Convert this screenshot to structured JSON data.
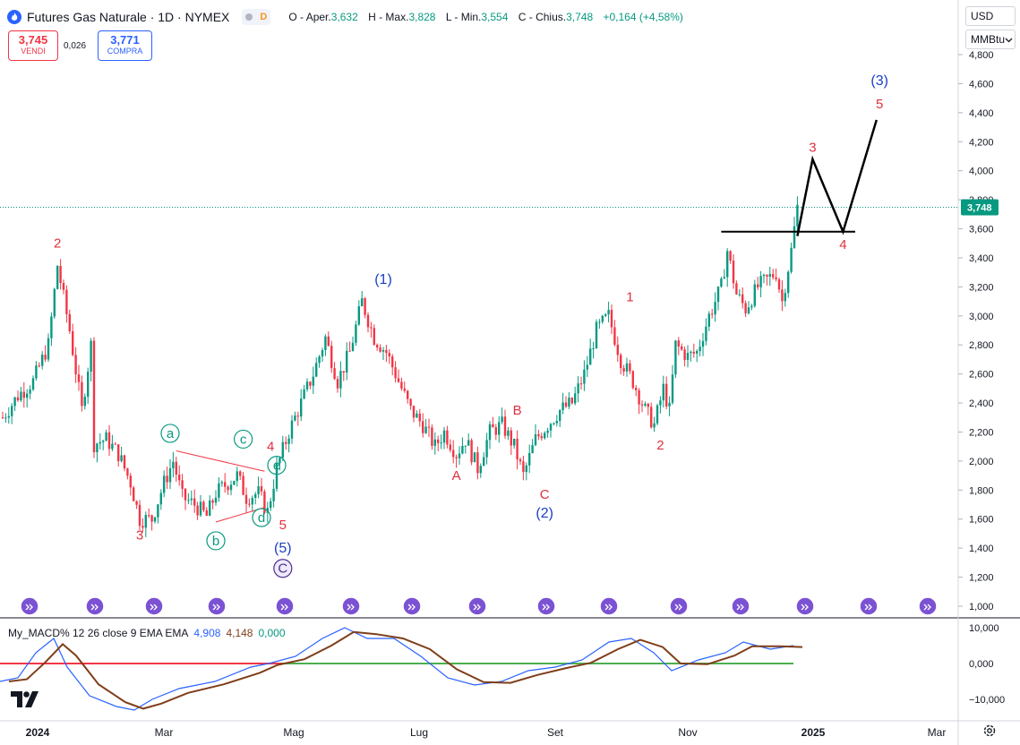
{
  "header": {
    "title": "Futures Gas Naturale · 1D · NYMEX",
    "badge": "D",
    "ohlc": [
      {
        "key": "O - Aper.",
        "value": "3,632"
      },
      {
        "key": "H - Max.",
        "value": "3,828"
      },
      {
        "key": "L - Min.",
        "value": "3,554"
      },
      {
        "key": "C - Chius.",
        "value": "3,748"
      }
    ],
    "change": "+0,164 (+4,58%)"
  },
  "trade": {
    "sell_price": "3,745",
    "sell_label": "VENDI",
    "spread": "0,026",
    "buy_price": "3,771",
    "buy_label": "COMPRA"
  },
  "controls": {
    "currency": "USD",
    "unit": "MMBtu"
  },
  "macd_legend": {
    "name": "My_MACD% 12 26 close 9 EMA EMA",
    "v1": "4,908",
    "v2": "4,148",
    "v3": "0,000"
  },
  "colors": {
    "up": "#089981",
    "down": "#f23645",
    "accent": "#2962ff",
    "macd": "#2962ff",
    "signal": "#7f3e1a",
    "wave_red": "#e0303e",
    "wave_blue": "#1a3fc4",
    "wave_green": "#089981"
  },
  "chart_data": {
    "type": "candlestick",
    "title": "Futures Gas Naturale · 1D · NYMEX",
    "y_ticks": [
      "4,800",
      "4,600",
      "4,400",
      "4,200",
      "4,000",
      "3,800",
      "3,600",
      "3,400",
      "3,200",
      "3,000",
      "2,800",
      "2,600",
      "2,400",
      "2,200",
      "2,000",
      "1,800",
      "1,600",
      "1,400",
      "1,200",
      "1,000"
    ],
    "ylim": [
      1.0,
      4.8
    ],
    "x_ticks": [
      "2024",
      "Mar",
      "Mag",
      "Lug",
      "Set",
      "Nov",
      "2025",
      "Mar"
    ],
    "last_price": "3,748",
    "macd_ticks": [
      "10,000",
      "0,000",
      "−10,000"
    ],
    "price_path": [
      [
        0,
        2.3
      ],
      [
        5,
        2.45
      ],
      [
        10,
        2.55
      ],
      [
        15,
        2.8
      ],
      [
        18,
        3.35
      ],
      [
        22,
        2.9
      ],
      [
        26,
        2.35
      ],
      [
        29,
        2.8
      ],
      [
        30,
        2.12
      ],
      [
        34,
        2.15
      ],
      [
        38,
        2.05
      ],
      [
        42,
        1.85
      ],
      [
        45,
        1.6
      ],
      [
        49,
        1.6
      ],
      [
        53,
        1.85
      ],
      [
        56,
        2.0
      ],
      [
        59,
        1.75
      ],
      [
        63,
        1.7
      ],
      [
        67,
        1.62
      ],
      [
        70,
        1.78
      ],
      [
        74,
        1.85
      ],
      [
        77,
        1.9
      ],
      [
        80,
        1.75
      ],
      [
        84,
        1.78
      ],
      [
        87,
        1.65
      ],
      [
        90,
        1.95
      ],
      [
        94,
        2.2
      ],
      [
        98,
        2.4
      ],
      [
        102,
        2.6
      ],
      [
        106,
        2.85
      ],
      [
        110,
        2.55
      ],
      [
        114,
        2.75
      ],
      [
        118,
        3.1
      ],
      [
        122,
        2.85
      ],
      [
        126,
        2.75
      ],
      [
        130,
        2.55
      ],
      [
        134,
        2.35
      ],
      [
        138,
        2.25
      ],
      [
        142,
        2.1
      ],
      [
        145,
        2.2
      ],
      [
        149,
        2.05
      ],
      [
        152,
        2.15
      ],
      [
        156,
        1.95
      ],
      [
        160,
        2.2
      ],
      [
        164,
        2.25
      ],
      [
        168,
        2.1
      ],
      [
        171,
        1.9
      ],
      [
        175,
        2.15
      ],
      [
        179,
        2.25
      ],
      [
        183,
        2.35
      ],
      [
        187,
        2.4
      ],
      [
        191,
        2.6
      ],
      [
        195,
        2.9
      ],
      [
        199,
        3.0
      ],
      [
        203,
        2.7
      ],
      [
        207,
        2.55
      ],
      [
        211,
        2.35
      ],
      [
        214,
        2.25
      ],
      [
        217,
        2.5
      ],
      [
        219,
        2.35
      ],
      [
        221,
        2.8
      ],
      [
        225,
        2.72
      ],
      [
        228,
        2.75
      ],
      [
        232,
        3.0
      ],
      [
        236,
        3.2
      ],
      [
        238,
        3.45
      ],
      [
        241,
        3.15
      ],
      [
        244,
        3.05
      ],
      [
        248,
        3.2
      ],
      [
        251,
        3.25
      ],
      [
        254,
        3.3
      ],
      [
        256,
        3.1
      ],
      [
        259,
        3.45
      ],
      [
        261,
        3.75
      ]
    ],
    "waves": [
      {
        "label": "2",
        "style": "red",
        "x": 18,
        "y": 3.47
      },
      {
        "label": "3",
        "style": "red",
        "x": 45,
        "y": 1.46
      },
      {
        "label": "a",
        "style": "green-circle",
        "x": 55,
        "y": 2.16
      },
      {
        "label": "b",
        "style": "green-circle",
        "x": 70,
        "y": 1.42
      },
      {
        "label": "c",
        "style": "green-circle",
        "x": 79,
        "y": 2.12
      },
      {
        "label": "d",
        "style": "green-circle",
        "x": 85,
        "y": 1.58
      },
      {
        "label": "e",
        "style": "green-circle",
        "x": 90,
        "y": 1.94
      },
      {
        "label": "4",
        "style": "red",
        "x": 88,
        "y": 2.07
      },
      {
        "label": "5",
        "style": "red",
        "x": 92,
        "y": 1.53
      },
      {
        "label": "(5)",
        "style": "blue",
        "x": 92,
        "y": 1.37
      },
      {
        "label": "C",
        "style": "purple-circle",
        "x": 92,
        "y": 1.23
      },
      {
        "label": "(1)",
        "style": "blue",
        "x": 125,
        "y": 3.22
      },
      {
        "label": "A",
        "style": "red",
        "x": 149,
        "y": 1.87
      },
      {
        "label": "B",
        "style": "red",
        "x": 169,
        "y": 2.32
      },
      {
        "label": "C",
        "style": "red",
        "x": 178,
        "y": 1.74
      },
      {
        "label": "(2)",
        "style": "blue",
        "x": 178,
        "y": 1.61
      },
      {
        "label": "1",
        "style": "red",
        "x": 206,
        "y": 3.1
      },
      {
        "label": "2",
        "style": "red",
        "x": 216,
        "y": 2.08
      },
      {
        "label": "3",
        "style": "red",
        "x": 266,
        "y": 4.13
      },
      {
        "label": "4",
        "style": "red",
        "x": 276,
        "y": 3.46
      },
      {
        "label": "(3)",
        "style": "blue",
        "x": 288,
        "y": 4.59
      },
      {
        "label": "5",
        "style": "red",
        "x": 288,
        "y": 4.43
      }
    ],
    "projection": [
      [
        261,
        3.55
      ],
      [
        266,
        4.08
      ],
      [
        276,
        3.58
      ],
      [
        287,
        4.35
      ]
    ],
    "resistance": {
      "from": 236,
      "to": 280,
      "y": 3.58
    },
    "triangle_lines": [
      {
        "from": [
          57,
          2.07
        ],
        "to": [
          86,
          1.93
        ]
      },
      {
        "from": [
          70,
          1.58
        ],
        "to": [
          86,
          1.68
        ]
      }
    ]
  }
}
